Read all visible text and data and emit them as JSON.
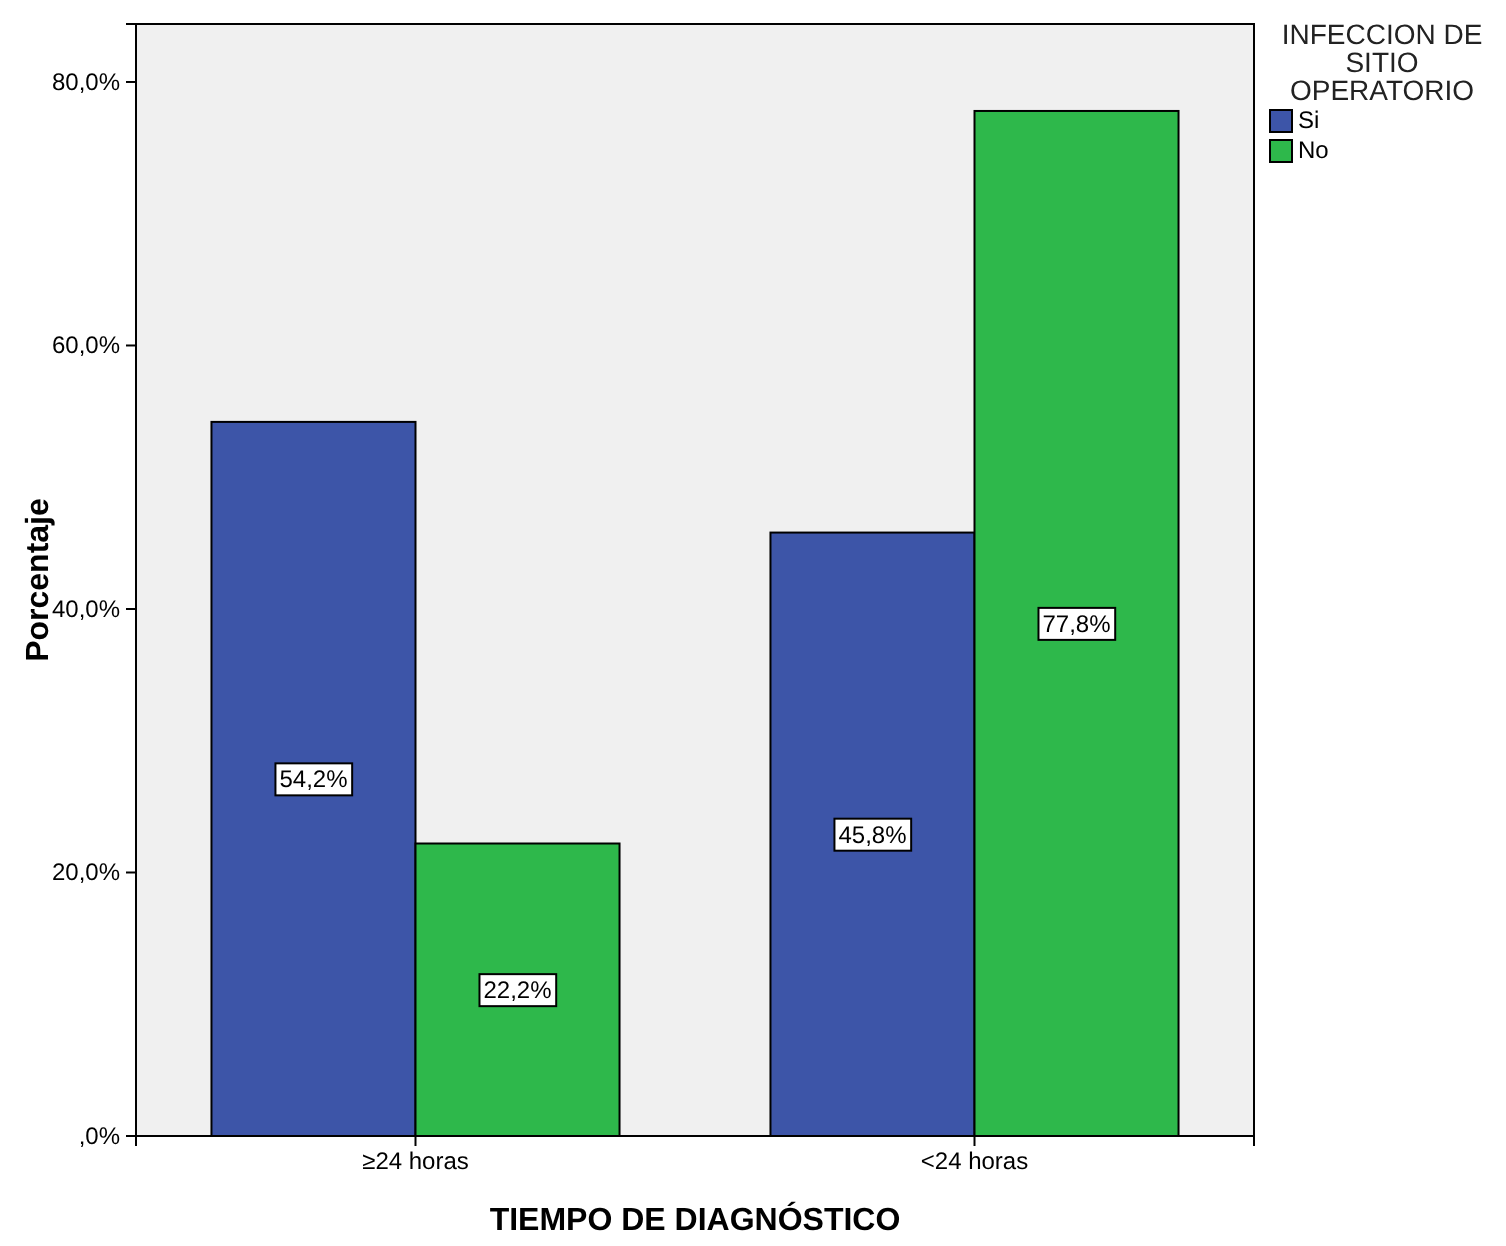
{
  "chart_data": {
    "type": "bar",
    "xlabel": "TIEMPO DE DIAGNÓSTICO",
    "ylabel": "Porcentaje",
    "legend_title": "INFECCION DE SITIO OPERATORIO",
    "legend": "top right",
    "grid": false,
    "categories": [
      "≥24 horas",
      "<24 horas"
    ],
    "series": [
      {
        "name": "Si",
        "color": "#3d55a8",
        "values": [
          54.2,
          45.8
        ],
        "value_labels": [
          "54,2%",
          "45,8%"
        ]
      },
      {
        "name": "No",
        "color": "#2eb84b",
        "values": [
          22.2,
          77.8
        ],
        "value_labels": [
          "22,2%",
          "77,8%"
        ]
      }
    ],
    "ylim": [
      0,
      84.4
    ],
    "yticks": [
      {
        "value": 0,
        "label": ",0%"
      },
      {
        "value": 20,
        "label": "20,0%"
      },
      {
        "value": 40,
        "label": "40,0%"
      },
      {
        "value": 60,
        "label": "60,0%"
      },
      {
        "value": 80,
        "label": "80,0%"
      }
    ]
  }
}
